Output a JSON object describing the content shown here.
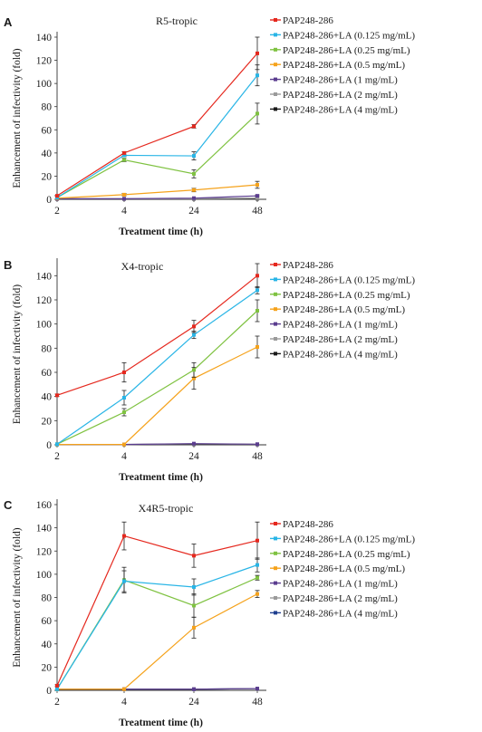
{
  "figure": {
    "panels": [
      {
        "letter": "A",
        "chart_data": {
          "type": "line",
          "title": "R5-tropic",
          "xlabel": "Treatment time (h)",
          "ylabel": "Enhancement of infectivity (fold)",
          "categories": [
            "2",
            "4",
            "24",
            "48"
          ],
          "ylim": [
            0,
            140
          ],
          "yticks": [
            0,
            20,
            40,
            60,
            80,
            100,
            120,
            140
          ],
          "grid": false,
          "legend_position": "right",
          "series": [
            {
              "name": "PAP248-286",
              "color": "#e5281e",
              "values": [
                3,
                40,
                63,
                126
              ],
              "errors": [
                0.6,
                1,
                1.5,
                14
              ]
            },
            {
              "name": "PAP248-286+LA (0.125 mg/mL)",
              "color": "#29b5e6",
              "values": [
                1.5,
                38,
                37.5,
                107
              ],
              "errors": [
                0.5,
                1,
                3.5,
                9
              ]
            },
            {
              "name": "PAP248-286+LA (0.25 mg/mL)",
              "color": "#7fc241",
              "values": [
                1.5,
                34,
                22,
                74
              ],
              "errors": [
                0.5,
                1.5,
                3.5,
                9
              ]
            },
            {
              "name": "PAP248-286+LA (0.5 mg/mL)",
              "color": "#f5a21b",
              "values": [
                1,
                4,
                8,
                12.5
              ],
              "errors": [
                0.5,
                1,
                1.5,
                3
              ]
            },
            {
              "name": "PAP248-286+LA (1 mg/mL)",
              "color": "#5b3d8f",
              "values": [
                0.5,
                0.5,
                1,
                3
              ],
              "errors": [
                0.2,
                0.2,
                0.3,
                0.8
              ]
            },
            {
              "name": "PAP248-286+LA (2 mg/mL)",
              "color": "#9a9a9a",
              "values": [
                0.5,
                0.5,
                0.5,
                1
              ],
              "errors": [
                0.2,
                0.2,
                0.2,
                0.3
              ]
            },
            {
              "name": "PAP248-286+LA (4 mg/mL)",
              "color": "#1a1a1a",
              "values": [
                0.3,
                0.3,
                0.3,
                0.5
              ],
              "errors": [
                0.1,
                0.1,
                0.1,
                0.2
              ]
            }
          ]
        }
      },
      {
        "letter": "B",
        "chart_data": {
          "type": "line",
          "title": "X4-tropic",
          "xlabel": "Treatment time (h)",
          "ylabel": "Enhancement of infectivity (fold)",
          "categories": [
            "2",
            "4",
            "24",
            "48"
          ],
          "ylim": [
            0,
            150
          ],
          "yticks": [
            0,
            20,
            40,
            60,
            80,
            100,
            120,
            140
          ],
          "grid": false,
          "legend_position": "right",
          "series": [
            {
              "name": "PAP248-286",
              "color": "#e5281e",
              "values": [
                41,
                60,
                98,
                140
              ],
              "errors": [
                1,
                8,
                5,
                10
              ]
            },
            {
              "name": "PAP248-286+LA (0.125 mg/mL)",
              "color": "#29b5e6",
              "values": [
                0.5,
                39,
                91,
                128
              ],
              "errors": [
                0.2,
                6,
                3,
                3
              ]
            },
            {
              "name": "PAP248-286+LA (0.25 mg/mL)",
              "color": "#7fc241",
              "values": [
                0.5,
                27,
                62,
                111
              ],
              "errors": [
                0.2,
                3,
                6,
                9
              ]
            },
            {
              "name": "PAP248-286+LA (0.5 mg/mL)",
              "color": "#f5a21b",
              "values": [
                0.3,
                0.3,
                55,
                81
              ],
              "errors": [
                0.1,
                0.1,
                9,
                9
              ]
            },
            {
              "name": "PAP248-286+LA (1 mg/mL)",
              "color": "#5b3d8f",
              "values": [
                0.3,
                0.3,
                1,
                0.5
              ],
              "errors": [
                0.1,
                0.1,
                0.3,
                0.2
              ]
            },
            {
              "name": "PAP248-286+LA (2 mg/mL)",
              "color": "#9a9a9a",
              "values": [
                0.3,
                0.3,
                0.8,
                0.5
              ],
              "errors": [
                0.1,
                0.1,
                0.3,
                0.2
              ]
            },
            {
              "name": "PAP248-286+LA (4 mg/mL)",
              "color": "#1a1a1a",
              "values": [
                0.3,
                0.3,
                0.5,
                0.3
              ],
              "errors": [
                0.1,
                0.1,
                0.2,
                0.1
              ]
            }
          ]
        }
      },
      {
        "letter": "C",
        "chart_data": {
          "type": "line",
          "title": "X4R5-tropic",
          "xlabel": "Treatment time (h)",
          "ylabel": "Enhancement of infectivity (fold)",
          "categories": [
            "2",
            "4",
            "24",
            "48"
          ],
          "ylim": [
            0,
            160
          ],
          "yticks": [
            0,
            20,
            40,
            60,
            80,
            100,
            120,
            140,
            160
          ],
          "grid": false,
          "legend_position": "right",
          "series": [
            {
              "name": "PAP248-286",
              "color": "#e5281e",
              "values": [
                4,
                133,
                116,
                129
              ],
              "errors": [
                0.8,
                12,
                10,
                16
              ]
            },
            {
              "name": "PAP248-286+LA (0.125 mg/mL)",
              "color": "#29b5e6",
              "values": [
                1,
                94,
                89,
                108
              ],
              "errors": [
                0.3,
                9,
                7,
                6
              ]
            },
            {
              "name": "PAP248-286+LA (0.25 mg/mL)",
              "color": "#7fc241",
              "values": [
                1,
                95,
                73,
                97
              ],
              "errors": [
                0.3,
                11,
                10,
                2
              ]
            },
            {
              "name": "PAP248-286+LA (0.5 mg/mL)",
              "color": "#f5a21b",
              "values": [
                1,
                1,
                54,
                83
              ],
              "errors": [
                0.2,
                0.2,
                9,
                3
              ]
            },
            {
              "name": "PAP248-286+LA (1 mg/mL)",
              "color": "#5b3d8f",
              "values": [
                1,
                1,
                1,
                1.5
              ],
              "errors": [
                0.2,
                0.2,
                0.2,
                0.3
              ]
            },
            {
              "name": "PAP248-286+LA (2 mg/mL)",
              "color": "#9a9a9a",
              "values": [
                1,
                1,
                1,
                1.5
              ],
              "errors": [
                0.2,
                0.2,
                0.2,
                0.3
              ]
            },
            {
              "name": "PAP248-286+LA (4 mg/mL)",
              "color": "#1f3f8f",
              "values": [
                1,
                1,
                1,
                1.5
              ],
              "errors": [
                0.2,
                0.2,
                0.2,
                0.3
              ]
            }
          ]
        }
      }
    ]
  }
}
